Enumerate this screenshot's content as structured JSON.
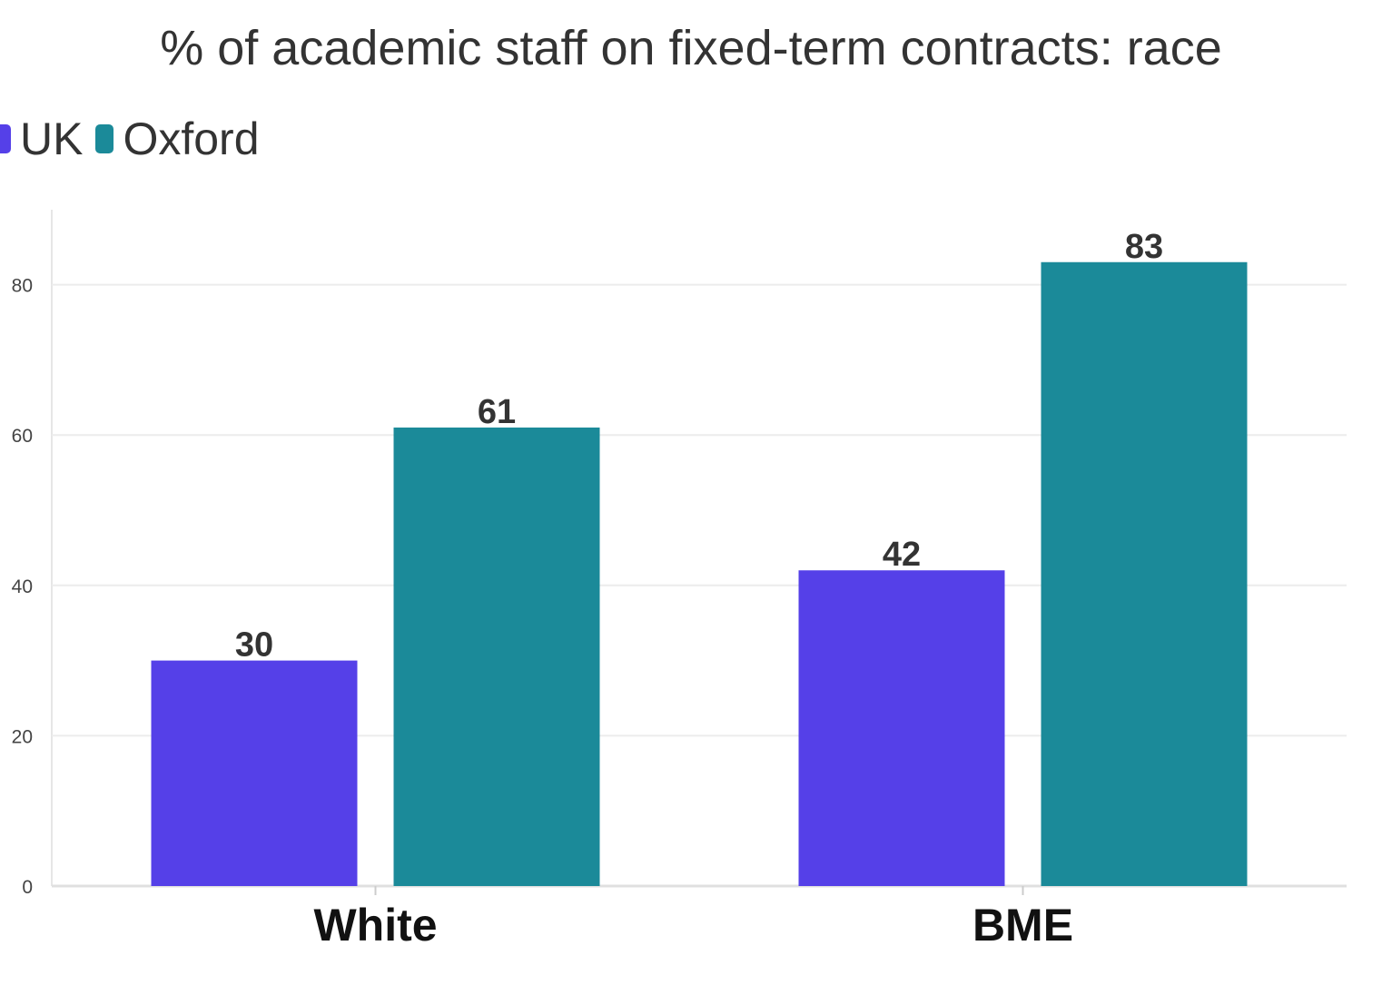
{
  "chart_data": {
    "type": "bar",
    "title": "% of academic staff on fixed-term contracts: race",
    "xlabel": "",
    "ylabel": "",
    "categories": [
      "White",
      "BME"
    ],
    "series": [
      {
        "name": "UK",
        "values": [
          30,
          42
        ],
        "color": "#5540E8"
      },
      {
        "name": "Oxford",
        "values": [
          61,
          83
        ],
        "color": "#1B8A99"
      }
    ],
    "ylim": [
      0,
      90
    ],
    "yticks": [
      0,
      20,
      40,
      60,
      80
    ],
    "grid": true,
    "legend_position": "top-left",
    "data_labels": true
  }
}
